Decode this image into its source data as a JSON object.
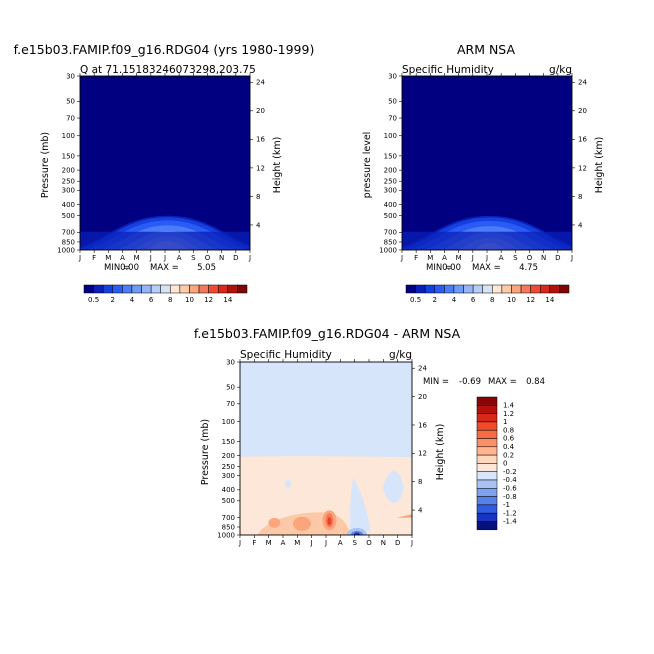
{
  "chart_data": [
    {
      "type": "heatmap",
      "title": "f.e15b03.FAMIP.f09_g16.RDG04 (yrs 1980-1999)",
      "subtitle_left": "Q at 71.15183246073298,203.75",
      "subtitle_right": "",
      "ylabel_left": "Pressure (mb)",
      "ylabel_right": "Height (km)",
      "months": [
        "J",
        "F",
        "M",
        "A",
        "M",
        "J",
        "J",
        "A",
        "S",
        "O",
        "N",
        "D",
        "J"
      ],
      "pressure_ticks": [
        "30",
        "50",
        "70",
        "100",
        "150",
        "200",
        "250",
        "300",
        "400",
        "500",
        "700",
        "850",
        "1000"
      ],
      "height_ticks": [
        "24",
        "20",
        "16",
        "12",
        "8",
        "4"
      ],
      "stats": {
        "min_label": "MIN =",
        "min": "0.00",
        "max_label": "MAX =",
        "max": "5.05"
      },
      "peak_value": 5.05
    },
    {
      "type": "heatmap",
      "title": "ARM NSA",
      "subtitle_left": "Specific Humidity",
      "subtitle_right": "g/kg",
      "ylabel_left": "pressure level",
      "ylabel_right": "Height (km)",
      "months": [
        "J",
        "F",
        "M",
        "A",
        "M",
        "J",
        "J",
        "A",
        "S",
        "O",
        "N",
        "D",
        "J"
      ],
      "pressure_ticks": [
        "30",
        "50",
        "70",
        "100",
        "150",
        "200",
        "250",
        "300",
        "400",
        "500",
        "700",
        "850",
        "1000"
      ],
      "height_ticks": [
        "24",
        "20",
        "16",
        "12",
        "8",
        "4"
      ],
      "stats": {
        "min_label": "MIN =",
        "min": "0.00",
        "max_label": "MAX =",
        "max": "4.75"
      },
      "peak_value": 4.75
    },
    {
      "type": "heatmap",
      "title": "f.e15b03.FAMIP.f09_g16.RDG04 - ARM NSA",
      "subtitle_left": "Specific Humidity",
      "subtitle_right": "g/kg",
      "ylabel_left": "Pressure (mb)",
      "ylabel_right": "Height (km)",
      "months": [
        "J",
        "F",
        "M",
        "A",
        "M",
        "J",
        "J",
        "A",
        "S",
        "O",
        "N",
        "D",
        "J"
      ],
      "pressure_ticks": [
        "30",
        "50",
        "70",
        "100",
        "150",
        "200",
        "250",
        "300",
        "400",
        "500",
        "700",
        "850",
        "1000"
      ],
      "height_ticks": [
        "24",
        "20",
        "16",
        "12",
        "8",
        "4"
      ],
      "stats": {
        "min_label": "MIN =",
        "min": "-0.69",
        "max_label": "MAX =",
        "max": "0.84"
      }
    }
  ],
  "colorbar_abs": {
    "labels": [
      "0.5",
      "2",
      "4",
      "6",
      "8",
      "10",
      "12",
      "14"
    ],
    "colors": [
      "#000080",
      "#0a1fb8",
      "#1540e0",
      "#2a5cf5",
      "#4a7df7",
      "#6f9bf6",
      "#94b6f6",
      "#b6cdf6",
      "#d6e2f6",
      "#ffe6d5",
      "#fdcaa8",
      "#fba57c",
      "#f7775a",
      "#ef4a35",
      "#d8281c",
      "#b1120e",
      "#7d0606"
    ]
  },
  "colorbar_diff": {
    "labels": [
      "1.4",
      "1.2",
      "1",
      "0.8",
      "0.6",
      "0.4",
      "0.2",
      "0",
      "-0.2",
      "-0.4",
      "-0.6",
      "-0.8",
      "-1",
      "-1.2",
      "-1.4"
    ],
    "colors": [
      "#8a0505",
      "#b4100c",
      "#d8281a",
      "#ef4a2a",
      "#f86c45",
      "#fb9068",
      "#fdb48f",
      "#ffd7bc",
      "#fee7d8",
      "#d7e6fb",
      "#a9c4f3",
      "#7ea3ee",
      "#5680e9",
      "#2f5ce0",
      "#1535c2",
      "#07137c"
    ]
  }
}
